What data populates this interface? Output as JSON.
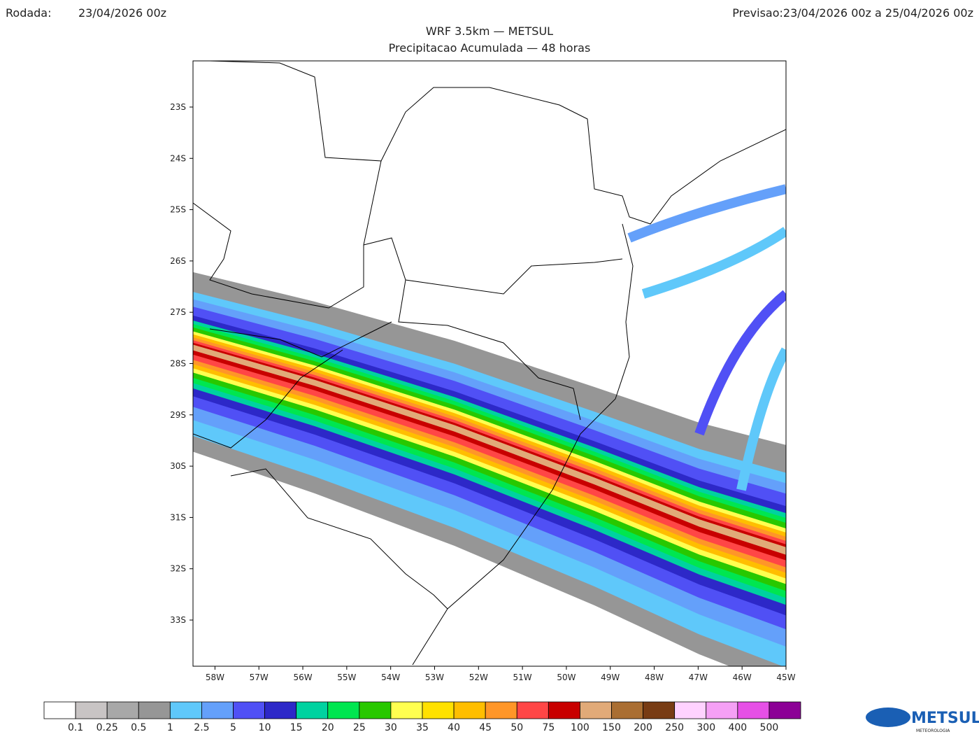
{
  "header": {
    "run_label": "Rodada:",
    "run": "23/04/2026 00z",
    "forecast": "Previsao:23/04/2026 00z a 25/04/2026 00z",
    "title": "WRF 3.5km — METSUL",
    "subtitle": "Precipitacao Acumulada — 48 horas"
  },
  "map": {
    "lonlim": [
      -58.5,
      -45
    ],
    "latlim": [
      -22.1,
      -33.9
    ],
    "lon_ticks": [
      {
        "value": -58,
        "label": "58W"
      },
      {
        "value": -57,
        "label": "57W"
      },
      {
        "value": -56,
        "label": "56W"
      },
      {
        "value": -55,
        "label": "55W"
      },
      {
        "value": -54,
        "label": "54W"
      },
      {
        "value": -53,
        "label": "53W"
      },
      {
        "value": -52,
        "label": "52W"
      },
      {
        "value": -51,
        "label": "51W"
      },
      {
        "value": -50,
        "label": "50W"
      },
      {
        "value": -49,
        "label": "49W"
      },
      {
        "value": -48,
        "label": "48W"
      },
      {
        "value": -47,
        "label": "47W"
      },
      {
        "value": -46,
        "label": "46W"
      },
      {
        "value": -45,
        "label": "45W"
      }
    ],
    "lat_ticks": [
      {
        "value": -23,
        "label": "23S"
      },
      {
        "value": -24,
        "label": "24S"
      },
      {
        "value": -25,
        "label": "25S"
      },
      {
        "value": -26,
        "label": "26S"
      },
      {
        "value": -27,
        "label": "27S"
      },
      {
        "value": -28,
        "label": "28S"
      },
      {
        "value": -29,
        "label": "29S"
      },
      {
        "value": -30,
        "label": "30S"
      },
      {
        "value": -31,
        "label": "31S"
      },
      {
        "value": -32,
        "label": "32S"
      },
      {
        "value": -33,
        "label": "33S"
      }
    ]
  },
  "legend": {
    "thresholds": [
      0.1,
      0.25,
      0.5,
      1,
      2.5,
      5,
      10,
      15,
      20,
      25,
      30,
      35,
      40,
      45,
      50,
      75,
      100,
      150,
      200,
      250,
      300,
      400,
      500
    ],
    "colors": [
      "#ffffff",
      "#c8c4c4",
      "#a8a8a8",
      "#969696",
      "#5fc8fa",
      "#64a0fa",
      "#5050f5",
      "#2d28c8",
      "#00d2a0",
      "#00e650",
      "#28c800",
      "#ffff50",
      "#ffe100",
      "#ffbe00",
      "#ff9628",
      "#ff4646",
      "#c80000",
      "#e1aa78",
      "#aa6e32",
      "#783c14",
      "#ffd2ff",
      "#f5a0f5",
      "#e650e6",
      "#8c0096"
    ]
  },
  "logo": {
    "name": "METSUL",
    "tagline": "METEOROLOGIA"
  }
}
